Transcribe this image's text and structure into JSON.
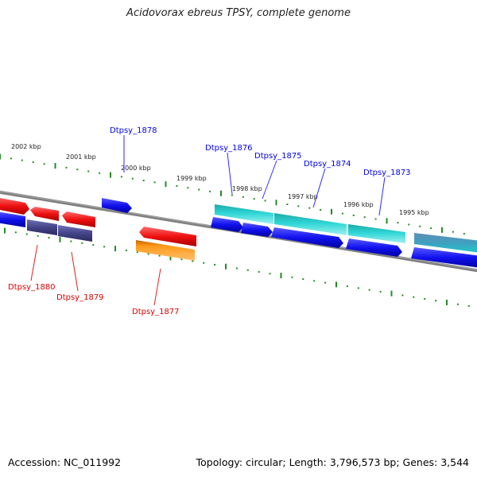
{
  "title": "Acidovorax ebreus TPSY, complete genome",
  "footer": {
    "accession": "Accession: NC_011992",
    "summary": "Topology: circular; Length: 3,796,573 bp; Genes: 3,544"
  },
  "scale": {
    "labels": [
      "2002 kbp",
      "2001 kbp",
      "2000 kbp",
      "1999 kbp",
      "1998 kbp",
      "1997 kbp",
      "1996 kbp",
      "1995 kbp"
    ]
  },
  "genes": [
    {
      "label": "Dtpsy_1878",
      "color": "#0000ee"
    },
    {
      "label": "Dtpsy_1876",
      "color": "#0000ee"
    },
    {
      "label": "Dtpsy_1875",
      "color": "#0000ee"
    },
    {
      "label": "Dtpsy_1874",
      "color": "#0000ee"
    },
    {
      "label": "Dtpsy_1873",
      "color": "#0000ee"
    },
    {
      "label": "Dtpsy_1880",
      "color": "#dd0000"
    },
    {
      "label": "Dtpsy_1879",
      "color": "#dd0000"
    },
    {
      "label": "Dtpsy_1877",
      "color": "#dd0000"
    }
  ],
  "colors": {
    "backbone": "#808080",
    "ticks": "#228B22",
    "forward_cds": "#ee1111",
    "reverse_cds": "#1111ee",
    "rna": "#22cccc",
    "pseudo": "#444488",
    "other": "#ff8c00"
  }
}
